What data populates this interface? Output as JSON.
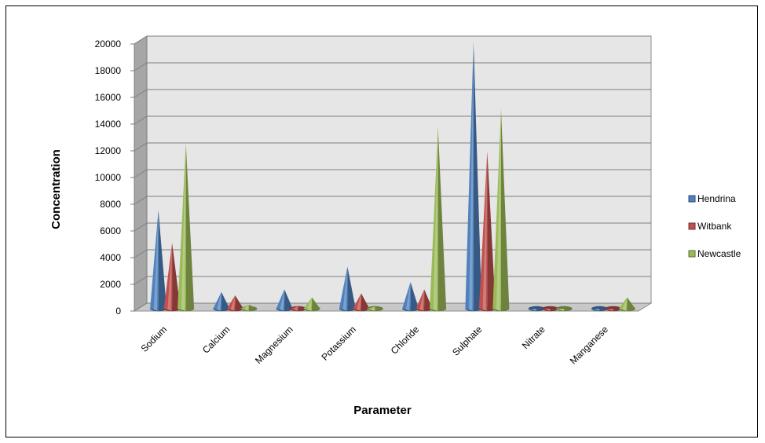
{
  "chart_data": {
    "type": "bar",
    "style": "3d-cone",
    "title": "",
    "xlabel": "Parameter",
    "ylabel": "Concentration",
    "ylim": [
      0,
      20000
    ],
    "yticks": [
      "0",
      "2000",
      "4000",
      "6000",
      "8000",
      "10000",
      "12000",
      "14000",
      "16000",
      "18000",
      "20000"
    ],
    "grid": true,
    "legend_position": "right",
    "categories": [
      "Sodium",
      "Calcium",
      "Magnesium",
      "Potassium",
      "Chloride",
      "Sulphate",
      "Nitrate",
      "Manganese"
    ],
    "series": [
      {
        "name": "Hendrina",
        "color": "#4f81bd",
        "values": [
          7400,
          1250,
          1450,
          3150,
          2000,
          20000,
          0,
          0
        ]
      },
      {
        "name": "Witbank",
        "color": "#c0504d",
        "values": [
          4950,
          1000,
          200,
          1150,
          1450,
          11800,
          0,
          0
        ]
      },
      {
        "name": "Newcastle",
        "color": "#9bbb59",
        "values": [
          12400,
          300,
          850,
          150,
          13600,
          15000,
          0,
          850
        ]
      }
    ]
  }
}
